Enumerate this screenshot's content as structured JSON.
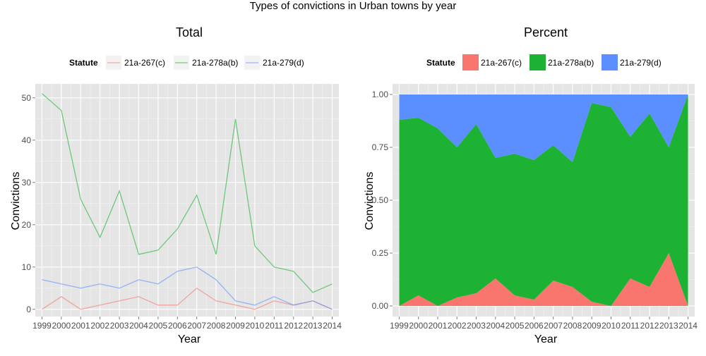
{
  "title": "Types of convictions in Urban towns by year",
  "colors": {
    "panel_bg": "#e5e5e5",
    "grid": "#ffffff",
    "s267": "#F8766D",
    "s278": "#1DB233",
    "s279": "#5B8FFF"
  },
  "chart_data": [
    {
      "type": "line",
      "title": "Total",
      "xlabel": "Year",
      "ylabel": "Convictions",
      "legend_title": "Statute",
      "legend_position": "top",
      "x": [
        "1999",
        "2000",
        "2001",
        "2002",
        "2003",
        "2004",
        "2005",
        "2006",
        "2007",
        "2008",
        "2009",
        "2010",
        "2011",
        "2012",
        "2013",
        "2014"
      ],
      "ylim": [
        -1.7,
        53.3
      ],
      "yticks": [
        "0",
        "10",
        "20",
        "30",
        "40",
        "50"
      ],
      "series": [
        {
          "name": "21a-267(c)",
          "values": [
            0,
            3,
            0,
            1,
            2,
            3,
            1,
            1,
            5,
            2,
            1,
            0,
            2,
            1,
            2,
            0
          ]
        },
        {
          "name": "21a-278a(b)",
          "values": [
            51,
            47,
            26,
            17,
            28,
            13,
            14,
            19,
            27,
            13,
            45,
            15,
            10,
            9,
            4,
            6
          ]
        },
        {
          "name": "21a-279(d)",
          "values": [
            7,
            6,
            5,
            6,
            5,
            7,
            6,
            9,
            10,
            7,
            2,
            1,
            3,
            1,
            2,
            0
          ]
        }
      ]
    },
    {
      "type": "area",
      "stacked": true,
      "title": "Percent",
      "xlabel": "Year",
      "ylabel": "Convictions",
      "legend_title": "Statute",
      "legend_position": "top",
      "x": [
        "1999",
        "2000",
        "2001",
        "2002",
        "2003",
        "2004",
        "2005",
        "2006",
        "2007",
        "2008",
        "2009",
        "2010",
        "2011",
        "2012",
        "2013",
        "2014"
      ],
      "ylim": [
        -0.05,
        1.05
      ],
      "yticks": [
        "0.00",
        "0.25",
        "0.50",
        "0.75",
        "1.00"
      ],
      "series": [
        {
          "name": "21a-267(c)",
          "values": [
            0.0,
            0.05,
            0.0,
            0.04,
            0.06,
            0.13,
            0.05,
            0.03,
            0.12,
            0.09,
            0.02,
            0.0,
            0.13,
            0.09,
            0.25,
            0.0
          ]
        },
        {
          "name": "21a-278a(b)",
          "values": [
            0.88,
            0.84,
            0.84,
            0.71,
            0.8,
            0.57,
            0.67,
            0.66,
            0.64,
            0.59,
            0.94,
            0.94,
            0.67,
            0.82,
            0.5,
            1.0
          ]
        },
        {
          "name": "21a-279(d)",
          "values": [
            0.12,
            0.11,
            0.16,
            0.25,
            0.14,
            0.3,
            0.28,
            0.31,
            0.24,
            0.32,
            0.04,
            0.06,
            0.2,
            0.09,
            0.25,
            0.0
          ]
        }
      ]
    }
  ]
}
